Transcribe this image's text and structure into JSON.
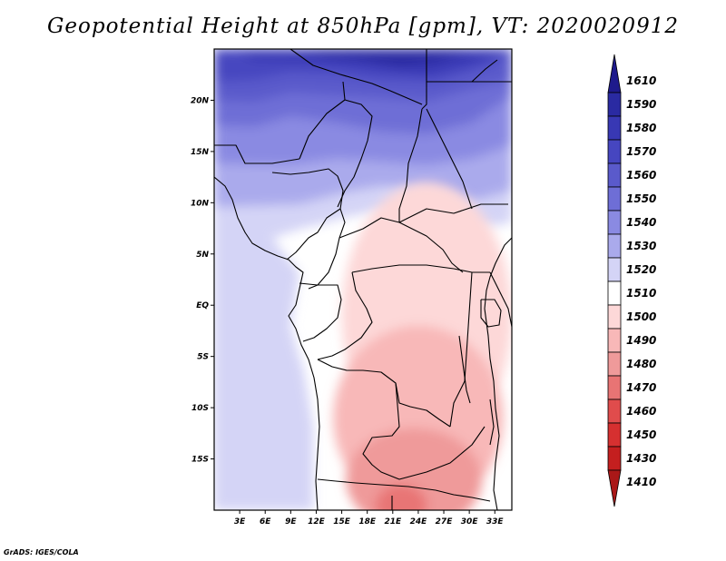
{
  "title": "Geopotential Height at 850hPa [gpm], VT: 2020020912",
  "credit": "GrADS: IGES/COLA",
  "map": {
    "lon_range": [
      0,
      35
    ],
    "lat_range": [
      -20,
      25
    ],
    "x_ticks": [
      {
        "value": 3,
        "label": "3E"
      },
      {
        "value": 6,
        "label": "6E"
      },
      {
        "value": 9,
        "label": "9E"
      },
      {
        "value": 12,
        "label": "12E"
      },
      {
        "value": 15,
        "label": "15E"
      },
      {
        "value": 18,
        "label": "18E"
      },
      {
        "value": 21,
        "label": "21E"
      },
      {
        "value": 24,
        "label": "24E"
      },
      {
        "value": 27,
        "label": "27E"
      },
      {
        "value": 30,
        "label": "30E"
      },
      {
        "value": 33,
        "label": "33E"
      }
    ],
    "y_ticks": [
      {
        "value": 20,
        "label": "20N"
      },
      {
        "value": 15,
        "label": "15N"
      },
      {
        "value": 10,
        "label": "10N"
      },
      {
        "value": 5,
        "label": "5N"
      },
      {
        "value": 0,
        "label": "EQ"
      },
      {
        "value": -5,
        "label": "5S"
      },
      {
        "value": -10,
        "label": "10S"
      },
      {
        "value": -15,
        "label": "15S"
      }
    ],
    "level_zones": [
      {
        "level": 1500,
        "lon": 25,
        "lat": -1,
        "rx": 10,
        "ry": 13
      },
      {
        "level": 1490,
        "lon": 24,
        "lat": -11,
        "rx": 10,
        "ry": 9
      },
      {
        "level": 1480,
        "lon": 23.5,
        "lat": -17,
        "rx": 8,
        "ry": 5
      },
      {
        "level": 1470,
        "lon": 22,
        "lat": -19.5,
        "rx": 3,
        "ry": 2
      }
    ]
  },
  "colorbar": {
    "levels": [
      {
        "label": "1610",
        "color": "#1e1a8c"
      },
      {
        "label": "1590",
        "color": "#2a2aa2"
      },
      {
        "label": "1580",
        "color": "#3838b4"
      },
      {
        "label": "1570",
        "color": "#4646c0"
      },
      {
        "label": "1560",
        "color": "#5a5acb"
      },
      {
        "label": "1550",
        "color": "#6e6ed6"
      },
      {
        "label": "1540",
        "color": "#8a8ae2"
      },
      {
        "label": "1530",
        "color": "#aaaaec"
      },
      {
        "label": "1520",
        "color": "#d4d4f6"
      },
      {
        "label": "1510",
        "color": "#ffffff"
      },
      {
        "label": "1500",
        "color": "#fdd8d8"
      },
      {
        "label": "1490",
        "color": "#f8b8b8"
      },
      {
        "label": "1480",
        "color": "#ef9a9a"
      },
      {
        "label": "1470",
        "color": "#e87474"
      },
      {
        "label": "1460",
        "color": "#e04c4c"
      },
      {
        "label": "1450",
        "color": "#d63030"
      },
      {
        "label": "1430",
        "color": "#c41f1f"
      },
      {
        "label": "1410",
        "color": "#aa1818"
      }
    ]
  }
}
